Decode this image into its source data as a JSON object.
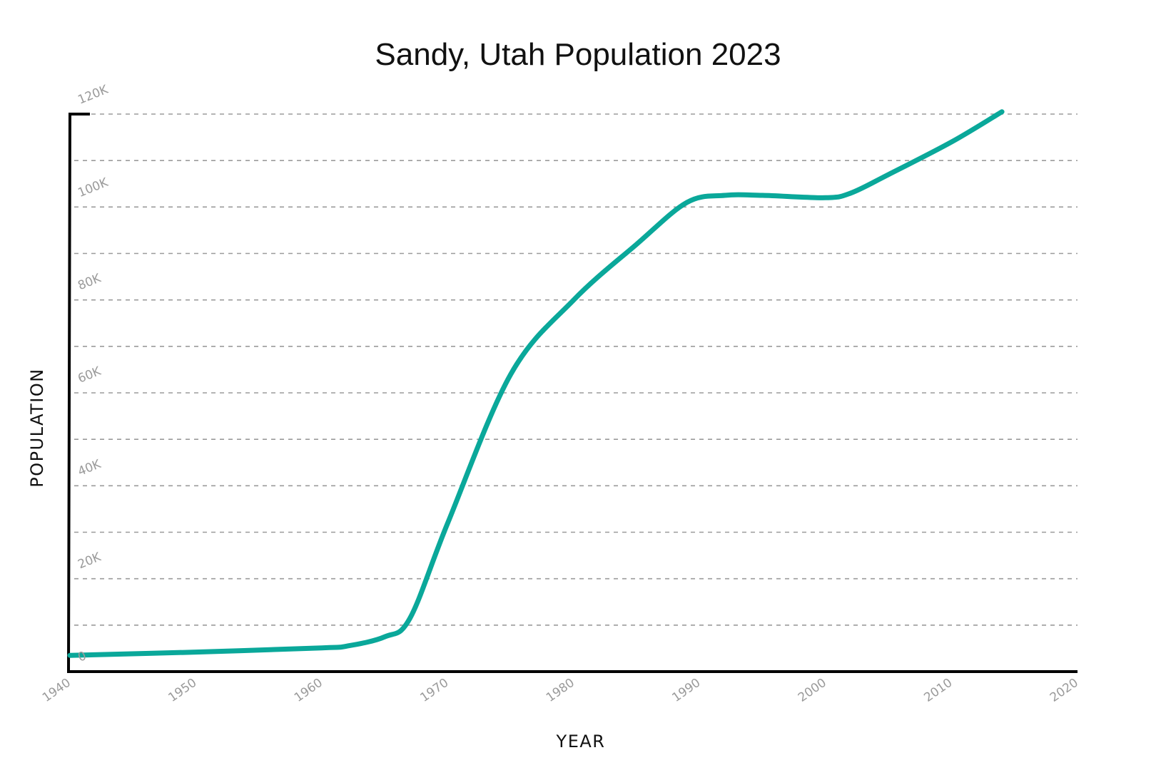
{
  "chart_data": {
    "type": "line",
    "title": "Sandy, Utah Population 2023",
    "xlabel": "YEAR",
    "ylabel": "POPULATION",
    "xlim": [
      1940,
      2020
    ],
    "ylim": [
      0,
      120000
    ],
    "x_ticks": [
      1940,
      1950,
      1960,
      1970,
      1980,
      1990,
      2000,
      2010,
      2020
    ],
    "x_tick_labels": [
      "1940",
      "1950",
      "1960",
      "1970",
      "1980",
      "1990",
      "2000",
      "2010",
      "2020"
    ],
    "y_tick_labels": [
      {
        "value": 0,
        "label": "0"
      },
      {
        "value": 20000,
        "label": "20K"
      },
      {
        "value": 40000,
        "label": "40K"
      },
      {
        "value": 60000,
        "label": "60K"
      },
      {
        "value": 80000,
        "label": "80K"
      },
      {
        "value": 100000,
        "label": "100K"
      },
      {
        "value": 120000,
        "label": "120K"
      }
    ],
    "gridlines_y": [
      10000,
      20000,
      30000,
      40000,
      50000,
      60000,
      70000,
      80000,
      90000,
      100000,
      110000,
      120000
    ],
    "grid": true,
    "legend": "none",
    "series": [
      {
        "color": "#0aa89a",
        "points": [
          [
            1940,
            3500
          ],
          [
            1950,
            4200
          ],
          [
            1960,
            5100
          ],
          [
            1962,
            5500
          ],
          [
            1965,
            7500
          ],
          [
            1967,
            11500
          ],
          [
            1970,
            32000
          ],
          [
            1975,
            64000
          ],
          [
            1980,
            80000
          ],
          [
            1985,
            92000
          ],
          [
            1989,
            101000
          ],
          [
            1992,
            102500
          ],
          [
            1995,
            102500
          ],
          [
            2000,
            102000
          ],
          [
            2002,
            103000
          ],
          [
            2005,
            107000
          ],
          [
            2010,
            114000
          ],
          [
            2014,
            120500
          ]
        ]
      }
    ]
  }
}
